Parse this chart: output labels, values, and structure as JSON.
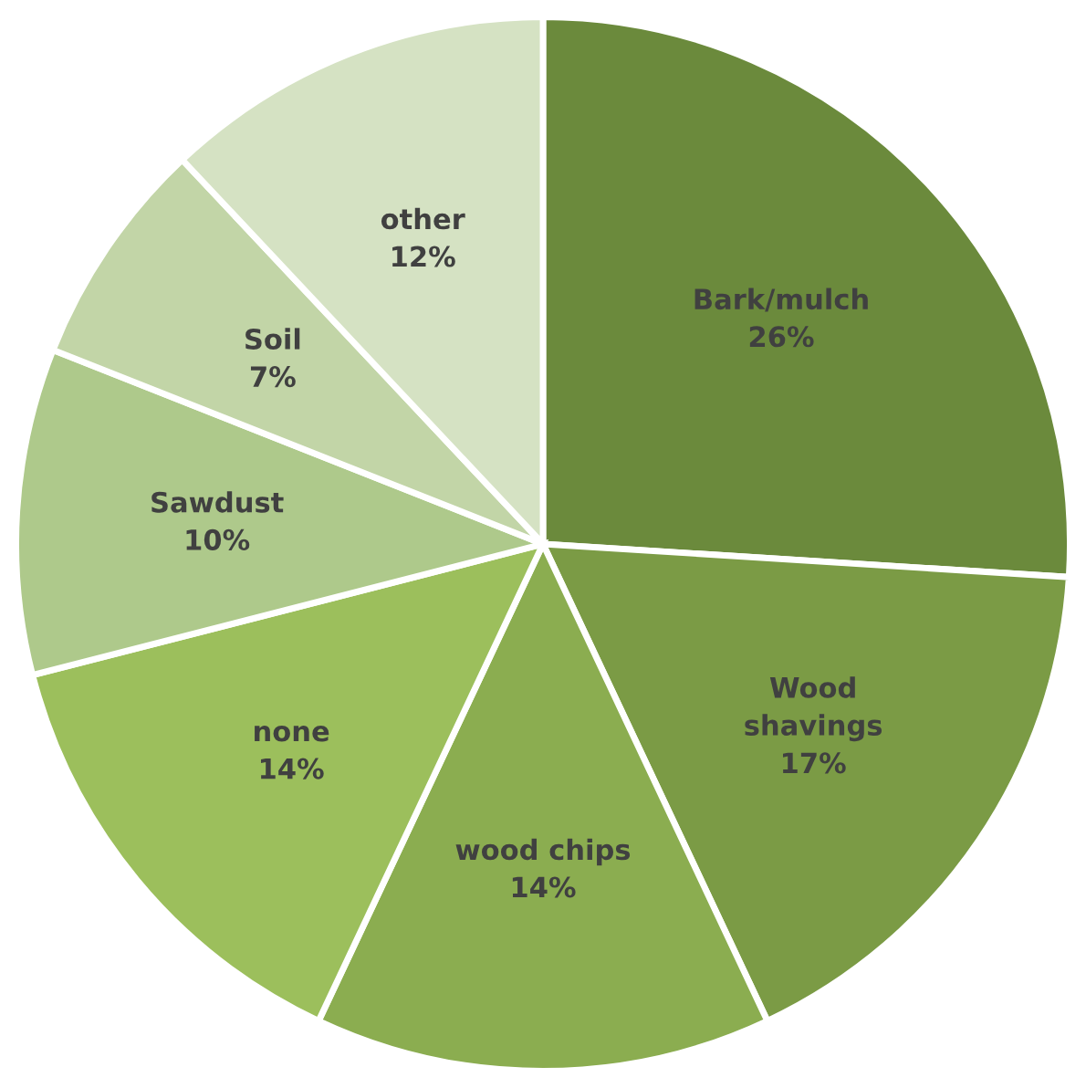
{
  "chart_data": {
    "type": "pie",
    "categories": [
      "Bark/mulch",
      "Wood\nshavings",
      "wood chips",
      "none",
      "Sawdust",
      "Soil",
      "other"
    ],
    "values": [
      26,
      17,
      14,
      14,
      10,
      7,
      12
    ],
    "colors": [
      "#6b8a3c",
      "#7b9b45",
      "#8bad50",
      "#9cbf5c",
      "#aec98b",
      "#c2d5a7",
      "#d5e2c3"
    ],
    "value_labels": [
      "26%",
      "17%",
      "14%",
      "14%",
      "10%",
      "7%",
      "12%"
    ]
  }
}
